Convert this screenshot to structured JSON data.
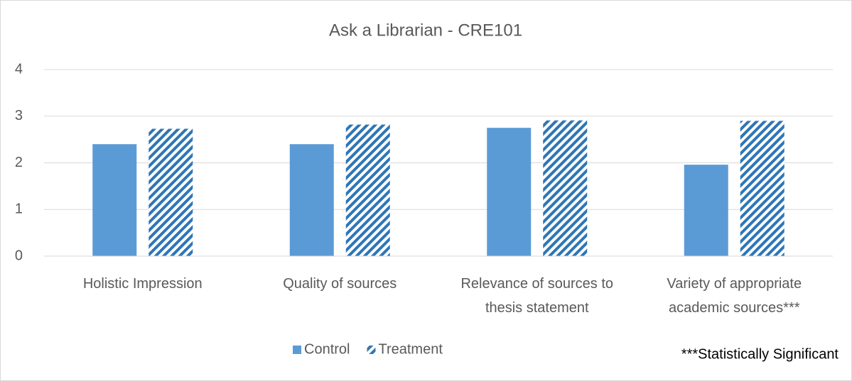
{
  "chart_data": {
    "type": "bar",
    "title": "Ask a Librarian - CRE101",
    "categories": [
      "Holistic Impression",
      "Quality of sources",
      "Relevance of sources to thesis statement",
      "Variety of appropriate academic sources***"
    ],
    "series": [
      {
        "name": "Control",
        "color": "#5b9bd5",
        "values": [
          2.4,
          2.4,
          2.75,
          1.96
        ]
      },
      {
        "name": "Treatment",
        "color": "#2e75b6",
        "pattern": "hatch",
        "values": [
          2.73,
          2.82,
          2.91,
          2.9
        ]
      }
    ],
    "ylim": [
      0,
      4
    ],
    "yticks": [
      0,
      1,
      2,
      3,
      4
    ],
    "grid": true,
    "legend": "bottom",
    "annotation": "***Statistically Significant"
  }
}
